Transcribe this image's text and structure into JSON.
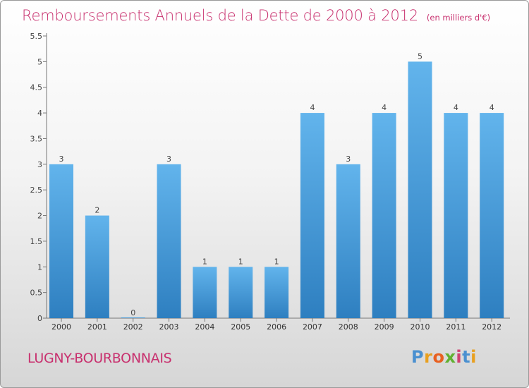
{
  "title": "Remboursements Annuels de la Dette de 2000 à 2012",
  "unit_note": "(en milliers d'€)",
  "commune": "LUGNY-BOURBONNAIS",
  "logo": {
    "letters": [
      "P",
      "r",
      "o",
      "x",
      "i",
      "t",
      "i"
    ],
    "colors": [
      "#4a90d0",
      "#e8a020",
      "#e86020",
      "#60b030",
      "#d04070",
      "#4a90d0",
      "#e8a020"
    ]
  },
  "colors": {
    "bar": "#4aa0dc",
    "bar_light": "#62b4ec",
    "bar_dark": "#2e7fc0",
    "title": "#c8306e"
  },
  "chart_data": {
    "type": "bar",
    "categories": [
      "2000",
      "2001",
      "2002",
      "2003",
      "2004",
      "2005",
      "2006",
      "2007",
      "2008",
      "2009",
      "2010",
      "2011",
      "2012"
    ],
    "values": [
      3,
      2,
      0,
      3,
      1,
      1,
      1,
      4,
      3,
      4,
      5,
      4,
      4
    ],
    "data_labels": [
      "3",
      "2",
      "0",
      "3",
      "1",
      "1",
      "1",
      "4",
      "3",
      "4",
      "5",
      "4",
      "4"
    ],
    "ylim": [
      0,
      5.5
    ],
    "yticks": [
      0,
      0.5,
      1,
      1.5,
      2,
      2.5,
      3,
      3.5,
      4,
      4.5,
      5,
      5.5
    ],
    "ytick_labels": [
      "0",
      "0.5",
      "1",
      "1.5",
      "2",
      "2.5",
      "3",
      "3.5",
      "4",
      "4.5",
      "5",
      "5.5"
    ],
    "grid": false
  }
}
